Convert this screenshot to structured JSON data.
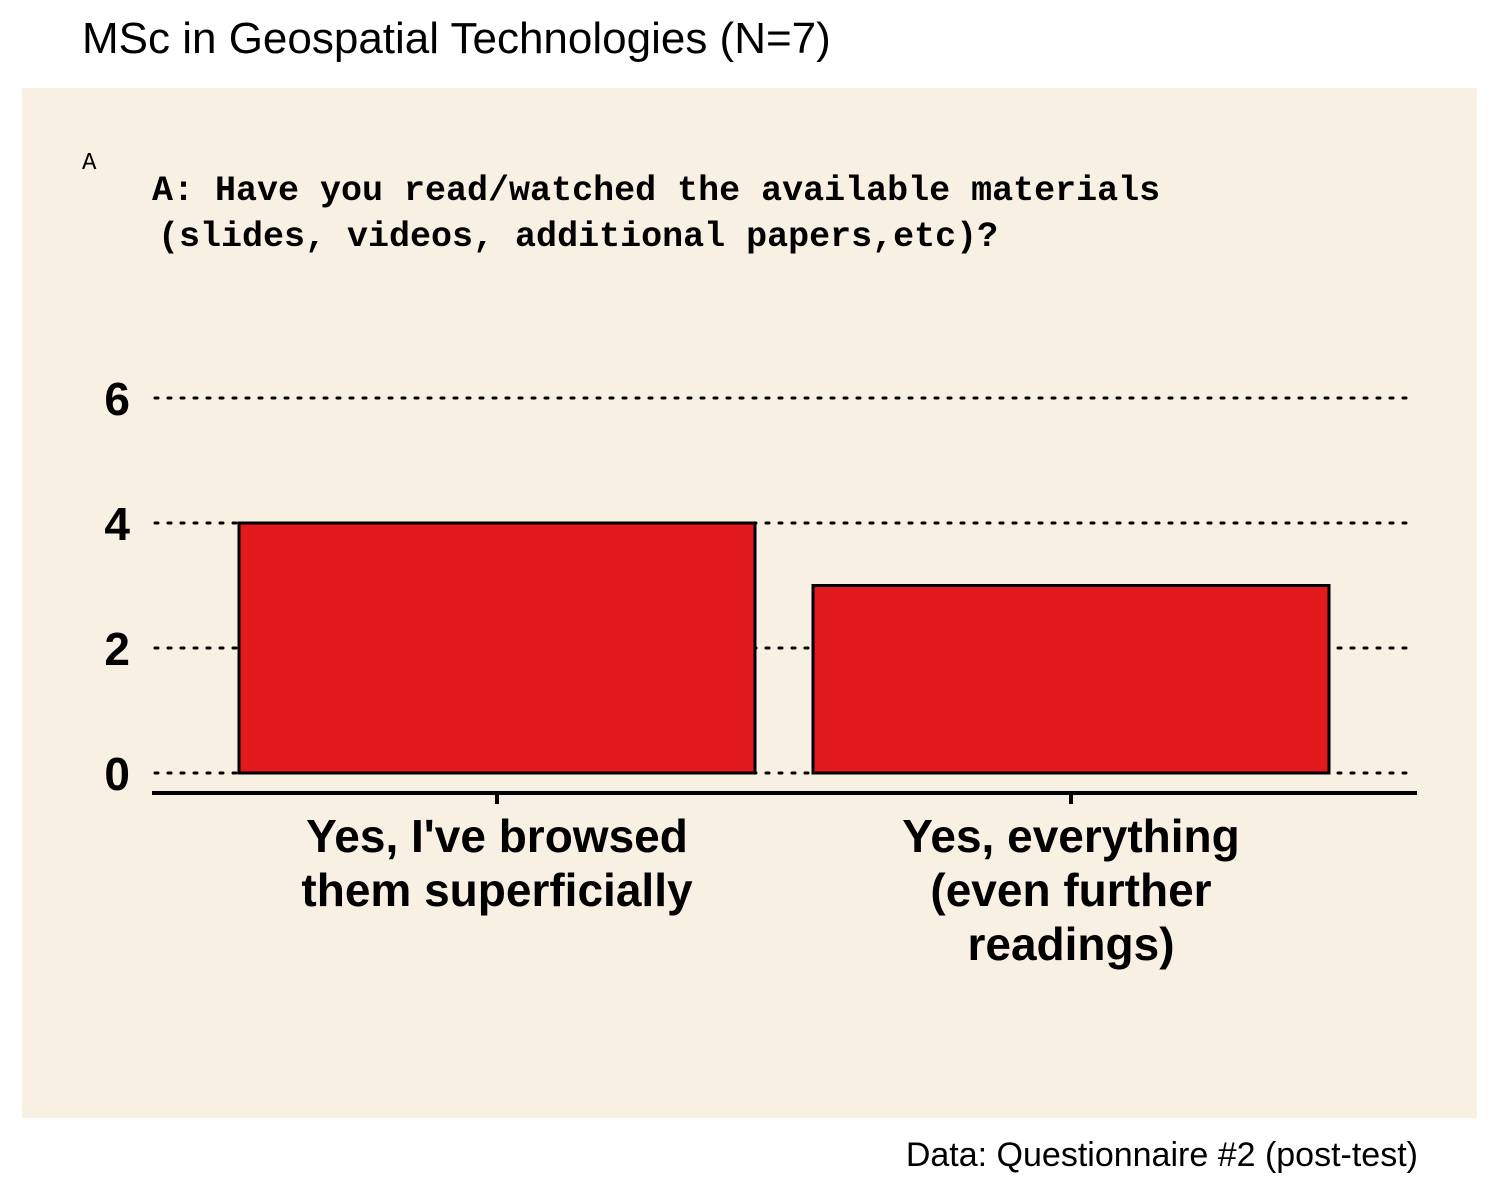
{
  "header": {
    "title": "MSc in Geospatial Technologies (N=7)"
  },
  "panel": {
    "tag": "A",
    "question_lines": [
      "A: Have you read/watched the available materials",
      "(slides, videos, additional papers,etc)?"
    ]
  },
  "caption": "Data: Questionnaire #2 (post-test)",
  "colors": {
    "bar": "#e31a1c",
    "panel_bg": "#f7f0e3",
    "outline": "#000000"
  },
  "chart_data": {
    "type": "bar",
    "categories": [
      [
        "Yes, I've browsed",
        "them superficially"
      ],
      [
        "Yes, everything",
        "(even further",
        "readings)"
      ]
    ],
    "values": [
      4,
      3
    ],
    "ylim": [
      0,
      6
    ],
    "yticks": [
      0,
      2,
      4,
      6
    ],
    "grid": "horizontal dotted",
    "legend": "none"
  }
}
